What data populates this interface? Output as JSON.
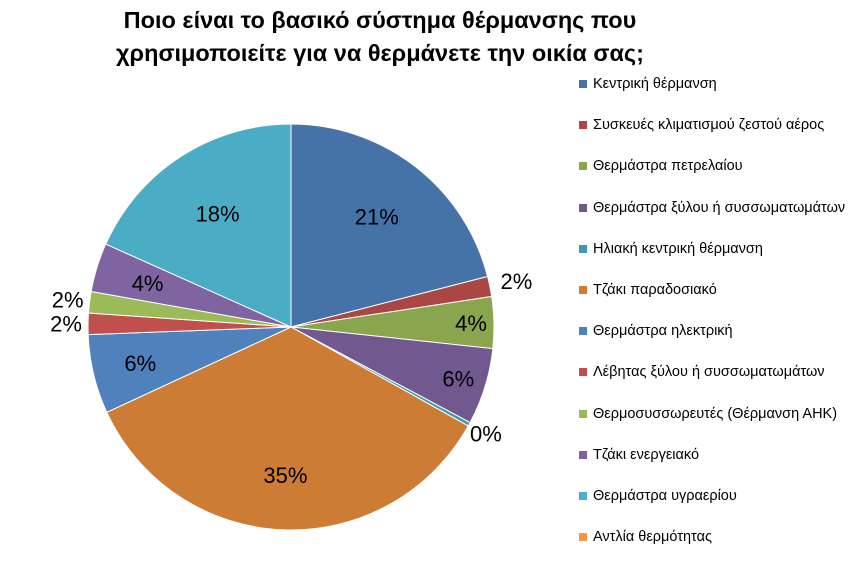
{
  "chart_data": {
    "type": "pie",
    "title": "Ποιο είναι το βασικό σύστημα θέρμανσης που\nχρησιμοποιείτε για να θερμάνετε την οικία σας;",
    "start_angle": "12 o'clock",
    "direction": "clockwise",
    "legend_position": "right",
    "slices": [
      {
        "label": "Κεντρική θέρμανση",
        "value": 21,
        "data_label": "21%",
        "color": "#4572A7"
      },
      {
        "label": "Συσκευές κλιματισμού ζεστού αέρος",
        "value": 1.6,
        "data_label": "2%",
        "color": "#AA4643"
      },
      {
        "label": "Θερμάστρα πετρελαίου",
        "value": 4.1,
        "data_label": "4%",
        "color": "#89A54E"
      },
      {
        "label": "Θερμάστρα ξύλου ή συσσωματωμάτων",
        "value": 6.1,
        "data_label": "6%",
        "color": "#71588F"
      },
      {
        "label": "Ηλιακή κεντρική θέρμανση",
        "value": 0.3,
        "data_label": "0%",
        "color": "#4198AF"
      },
      {
        "label": "Τζάκι παραδοσιακό",
        "value": 35,
        "data_label": "35%",
        "color": "#CD7C36"
      },
      {
        "label": "Θερμάστρα ηλεκτρική",
        "value": 6.3,
        "data_label": "6%",
        "color": "#4F81BD"
      },
      {
        "label": "Λέβητας ξύλου ή συσσωματωμάτων",
        "value": 1.7,
        "data_label": "2%",
        "color": "#C0504D"
      },
      {
        "label": "Θερμοσυσσωρευτές (Θέρμανση ΑΗΚ)",
        "value": 1.7,
        "data_label": "2%",
        "color": "#9BBB59"
      },
      {
        "label": "Τζάκι ενεργειακό",
        "value": 3.9,
        "data_label": "4%",
        "color": "#8064A2"
      },
      {
        "label": "Θερμάστρα υγραερίου",
        "value": 18.3,
        "data_label": "18%",
        "color": "#4BACC6"
      },
      {
        "label": "Αντλία θερμότητας",
        "value": 0,
        "data_label": "",
        "color": "#F79646"
      }
    ]
  }
}
